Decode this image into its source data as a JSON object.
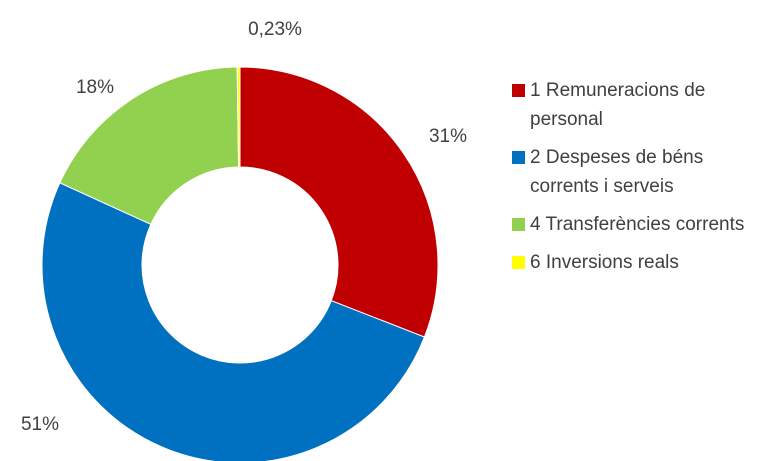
{
  "chart_data": {
    "type": "donut",
    "categories": [
      "1 Remuneracions de personal",
      "2 Despeses de béns corrents i serveis",
      "4 Transferències corrents",
      "6 Inversions reals"
    ],
    "values": [
      31,
      51,
      18,
      0.23
    ],
    "value_labels": [
      "31%",
      "51%",
      "18%",
      "0,23%"
    ],
    "colors": [
      "#c00000",
      "#0070c0",
      "#92d050",
      "#ffff00"
    ],
    "legend": "right"
  }
}
